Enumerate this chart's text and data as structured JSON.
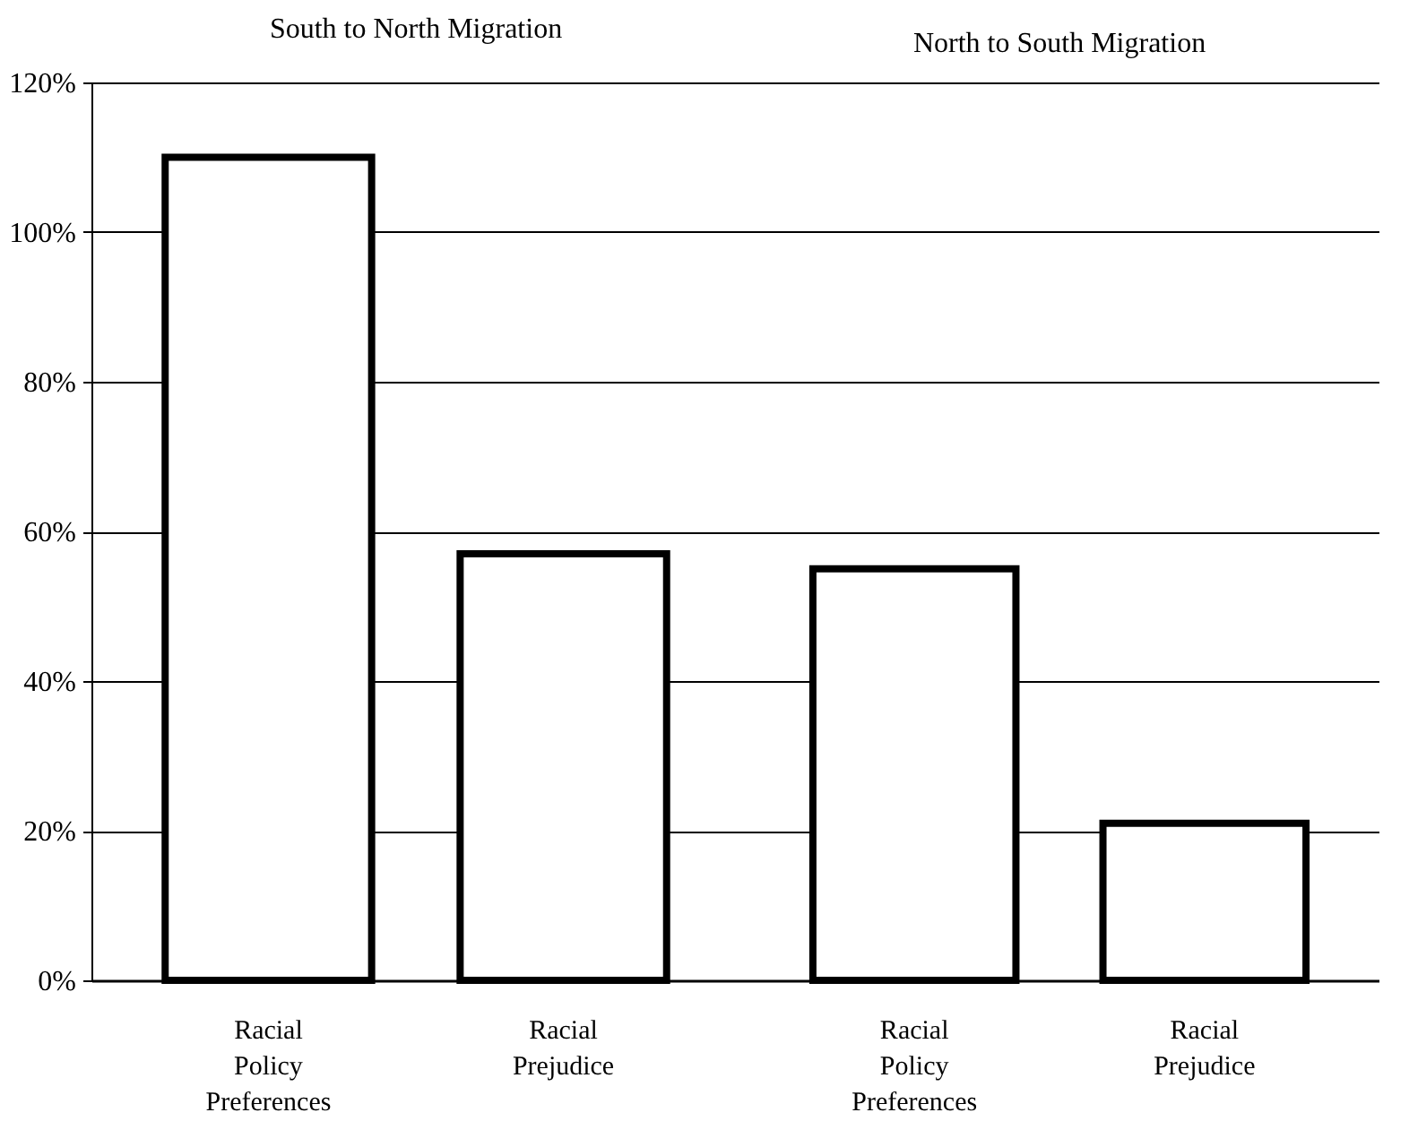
{
  "chart_data": [
    {
      "type": "bar",
      "title": "South to North Migration",
      "categories": [
        "Racial Policy Preferences",
        "Racial Prejudice"
      ],
      "values": [
        110,
        57
      ],
      "color": "#ffffff",
      "ylim": [
        0,
        120
      ],
      "yticks": [
        {
          "value": 0,
          "label": "0%"
        },
        {
          "value": 20,
          "label": "20%"
        },
        {
          "value": 40,
          "label": "40%"
        },
        {
          "value": 60,
          "label": "60%"
        },
        {
          "value": 80,
          "label": "80%"
        },
        {
          "value": 100,
          "label": "100%"
        },
        {
          "value": 120,
          "label": "120%"
        }
      ],
      "grid": "y"
    },
    {
      "type": "bar",
      "title": "North to South Migration",
      "categories": [
        "Racial Policy Preferences",
        "Racial Prejudice"
      ],
      "values": [
        55,
        21
      ],
      "color": "#ffffff",
      "ylim": [
        0,
        120
      ],
      "yticks": [
        0,
        20,
        40,
        60,
        80,
        100,
        120
      ],
      "grid": "y",
      "tick_labels": "x"
    }
  ]
}
